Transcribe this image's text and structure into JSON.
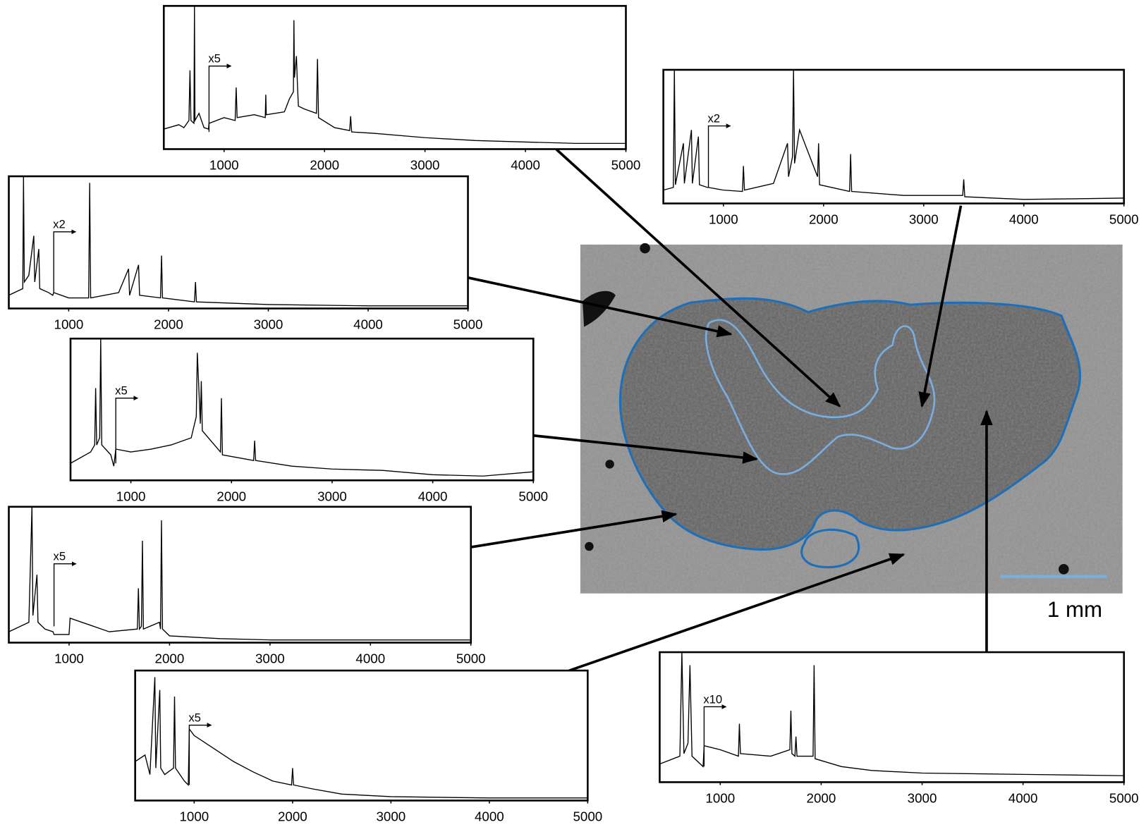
{
  "chart_data": [
    {
      "type": "line",
      "color": "#000000",
      "xlim": [
        400,
        5000
      ],
      "ylim": [
        0,
        100
      ],
      "xticks": [
        1000,
        2000,
        3000,
        4000,
        5000
      ],
      "annotation": {
        "text": "x5",
        "x": 850
      },
      "x": [
        400,
        550,
        600,
        650,
        660,
        670,
        700,
        705,
        710,
        750,
        800,
        845,
        850,
        1000,
        1110,
        1120,
        1130,
        1300,
        1410,
        1415,
        1420,
        1600,
        1650,
        1690,
        1695,
        1700,
        1720,
        1730,
        1740,
        1800,
        1920,
        1930,
        1940,
        2100,
        2250,
        2260,
        2270,
        2500,
        3000,
        3500,
        4000,
        4500,
        5000
      ],
      "values": [
        14,
        17,
        15,
        20,
        55,
        20,
        18,
        100,
        20,
        25,
        15,
        14,
        18,
        22,
        20,
        43,
        22,
        24,
        22,
        38,
        24,
        26,
        35,
        40,
        90,
        50,
        65,
        45,
        30,
        28,
        25,
        63,
        22,
        15,
        13,
        23,
        12,
        11,
        8,
        6,
        5,
        4,
        4
      ]
    },
    {
      "type": "line",
      "color": "#000000",
      "xlim": [
        400,
        5000
      ],
      "ylim": [
        0,
        100
      ],
      "xticks": [
        1000,
        2000,
        3000,
        4000,
        5000
      ],
      "annotation": {
        "text": "x2",
        "x": 850
      },
      "x": [
        400,
        500,
        510,
        520,
        600,
        610,
        680,
        690,
        750,
        760,
        840,
        850,
        1000,
        1190,
        1200,
        1210,
        1500,
        1640,
        1650,
        1690,
        1700,
        1710,
        1760,
        1940,
        1950,
        1960,
        2260,
        2270,
        2280,
        2800,
        3390,
        3400,
        3410,
        4000,
        5000
      ],
      "values": [
        10,
        12,
        100,
        14,
        45,
        15,
        55,
        15,
        50,
        14,
        12,
        12,
        10,
        9,
        28,
        10,
        15,
        45,
        20,
        35,
        100,
        30,
        55,
        20,
        45,
        14,
        9,
        37,
        9,
        6,
        6,
        18,
        5,
        3,
        4
      ]
    },
    {
      "type": "line",
      "color": "#000000",
      "xlim": [
        400,
        5000
      ],
      "ylim": [
        0,
        100
      ],
      "xticks": [
        1000,
        2000,
        3000,
        4000,
        5000
      ],
      "annotation": {
        "text": "x2",
        "x": 850
      },
      "x": [
        400,
        540,
        547,
        555,
        600,
        650,
        660,
        700,
        710,
        800,
        840,
        850,
        1000,
        1200,
        1210,
        1220,
        1500,
        1600,
        1610,
        1700,
        1710,
        1920,
        1930,
        1940,
        2260,
        2270,
        2280,
        3000,
        4000,
        5000
      ],
      "values": [
        10,
        15,
        100,
        20,
        25,
        55,
        20,
        45,
        15,
        12,
        10,
        12,
        8,
        8,
        95,
        8,
        12,
        30,
        10,
        33,
        10,
        8,
        40,
        8,
        5,
        20,
        5,
        3,
        2,
        2
      ]
    },
    {
      "type": "line",
      "color": "#000000",
      "xlim": [
        400,
        5000
      ],
      "ylim": [
        0,
        100
      ],
      "xticks": [
        1000,
        2000,
        3000,
        4000,
        5000
      ],
      "annotation": {
        "text": "x5",
        "x": 850
      },
      "x": [
        400,
        600,
        640,
        650,
        660,
        690,
        700,
        710,
        800,
        830,
        850,
        1000,
        1200,
        1400,
        1600,
        1650,
        1660,
        1690,
        1700,
        1710,
        1890,
        1900,
        1910,
        2220,
        2230,
        2240,
        2600,
        3000,
        3500,
        4000,
        4500,
        5000
      ],
      "values": [
        12,
        20,
        25,
        65,
        25,
        30,
        100,
        25,
        18,
        10,
        22,
        20,
        22,
        25,
        30,
        45,
        90,
        40,
        70,
        35,
        20,
        58,
        18,
        14,
        28,
        14,
        10,
        8,
        7,
        4,
        3,
        6
      ]
    },
    {
      "type": "line",
      "color": "#000000",
      "xlim": [
        400,
        5000
      ],
      "ylim": [
        0,
        100
      ],
      "xticks": [
        1000,
        2000,
        3000,
        4000,
        5000
      ],
      "annotation": {
        "text": "x5",
        "x": 850
      },
      "x": [
        400,
        600,
        630,
        640,
        680,
        690,
        760,
        840,
        850,
        1000,
        1010,
        1400,
        1680,
        1690,
        1700,
        1720,
        1730,
        1740,
        1900,
        1910,
        1920,
        1930,
        2000,
        2500,
        3000,
        4000,
        5000
      ],
      "values": [
        8,
        15,
        100,
        20,
        50,
        15,
        10,
        8,
        6,
        6,
        18,
        8,
        10,
        40,
        10,
        12,
        75,
        10,
        15,
        10,
        90,
        10,
        5,
        3,
        2,
        2,
        2
      ]
    },
    {
      "type": "line",
      "color": "#000000",
      "xlim": [
        400,
        5000
      ],
      "ylim": [
        0,
        100
      ],
      "xticks": [
        1000,
        2000,
        3000,
        4000,
        5000
      ],
      "annotation": {
        "text": "x5",
        "x": 950
      },
      "x": [
        400,
        500,
        550,
        600,
        610,
        650,
        660,
        700,
        790,
        800,
        810,
        900,
        940,
        950,
        1000,
        1200,
        1400,
        1600,
        1800,
        1990,
        2000,
        2010,
        2200,
        2500,
        3000,
        4000,
        5000
      ],
      "values": [
        30,
        35,
        20,
        95,
        25,
        85,
        25,
        20,
        25,
        80,
        25,
        15,
        12,
        55,
        50,
        40,
        30,
        22,
        15,
        12,
        25,
        12,
        9,
        5,
        3,
        2,
        2
      ]
    },
    {
      "type": "line",
      "color": "#000000",
      "xlim": [
        400,
        5000
      ],
      "ylim": [
        0,
        100
      ],
      "xticks": [
        1000,
        2000,
        3000,
        4000,
        5000
      ],
      "annotation": {
        "text": "x10",
        "x": 840
      },
      "x": [
        400,
        600,
        620,
        640,
        680,
        700,
        720,
        830,
        840,
        1000,
        1180,
        1190,
        1200,
        1500,
        1690,
        1700,
        1710,
        1740,
        1750,
        1760,
        1920,
        1930,
        1940,
        2200,
        2500,
        3000,
        4000,
        5000
      ],
      "values": [
        14,
        20,
        100,
        22,
        30,
        90,
        20,
        12,
        28,
        25,
        20,
        45,
        22,
        20,
        25,
        55,
        22,
        20,
        35,
        20,
        20,
        90,
        18,
        12,
        9,
        7,
        6,
        5
      ]
    }
  ],
  "image": {
    "scale_bar_label": "1 mm"
  }
}
